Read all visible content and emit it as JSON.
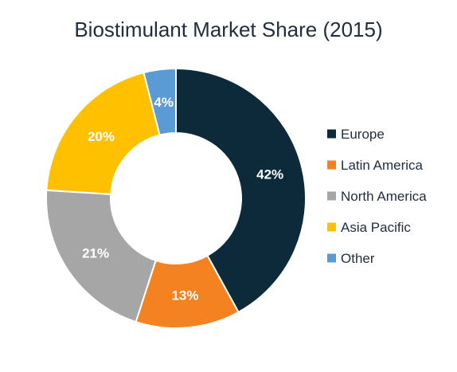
{
  "chart_data": {
    "type": "pie",
    "donut": true,
    "title": "Biostimulant Market Share (2015)",
    "categories": [
      "Europe",
      "Latin America",
      "North America",
      "Asia Pacific",
      "Other"
    ],
    "values": [
      42,
      13,
      21,
      20,
      4
    ],
    "value_labels": [
      "42%",
      "13%",
      "21%",
      "20%",
      "4%"
    ],
    "colors": [
      "#0d2a3a",
      "#f58220",
      "#a6a6a6",
      "#ffc000",
      "#5b9bd5"
    ],
    "label_colors": [
      "#ffffff",
      "#ffffff",
      "#ffffff",
      "#ffffff",
      "#ffffff"
    ],
    "start_angle_deg": 0,
    "direction": "clockwise",
    "legend_position": "right"
  }
}
